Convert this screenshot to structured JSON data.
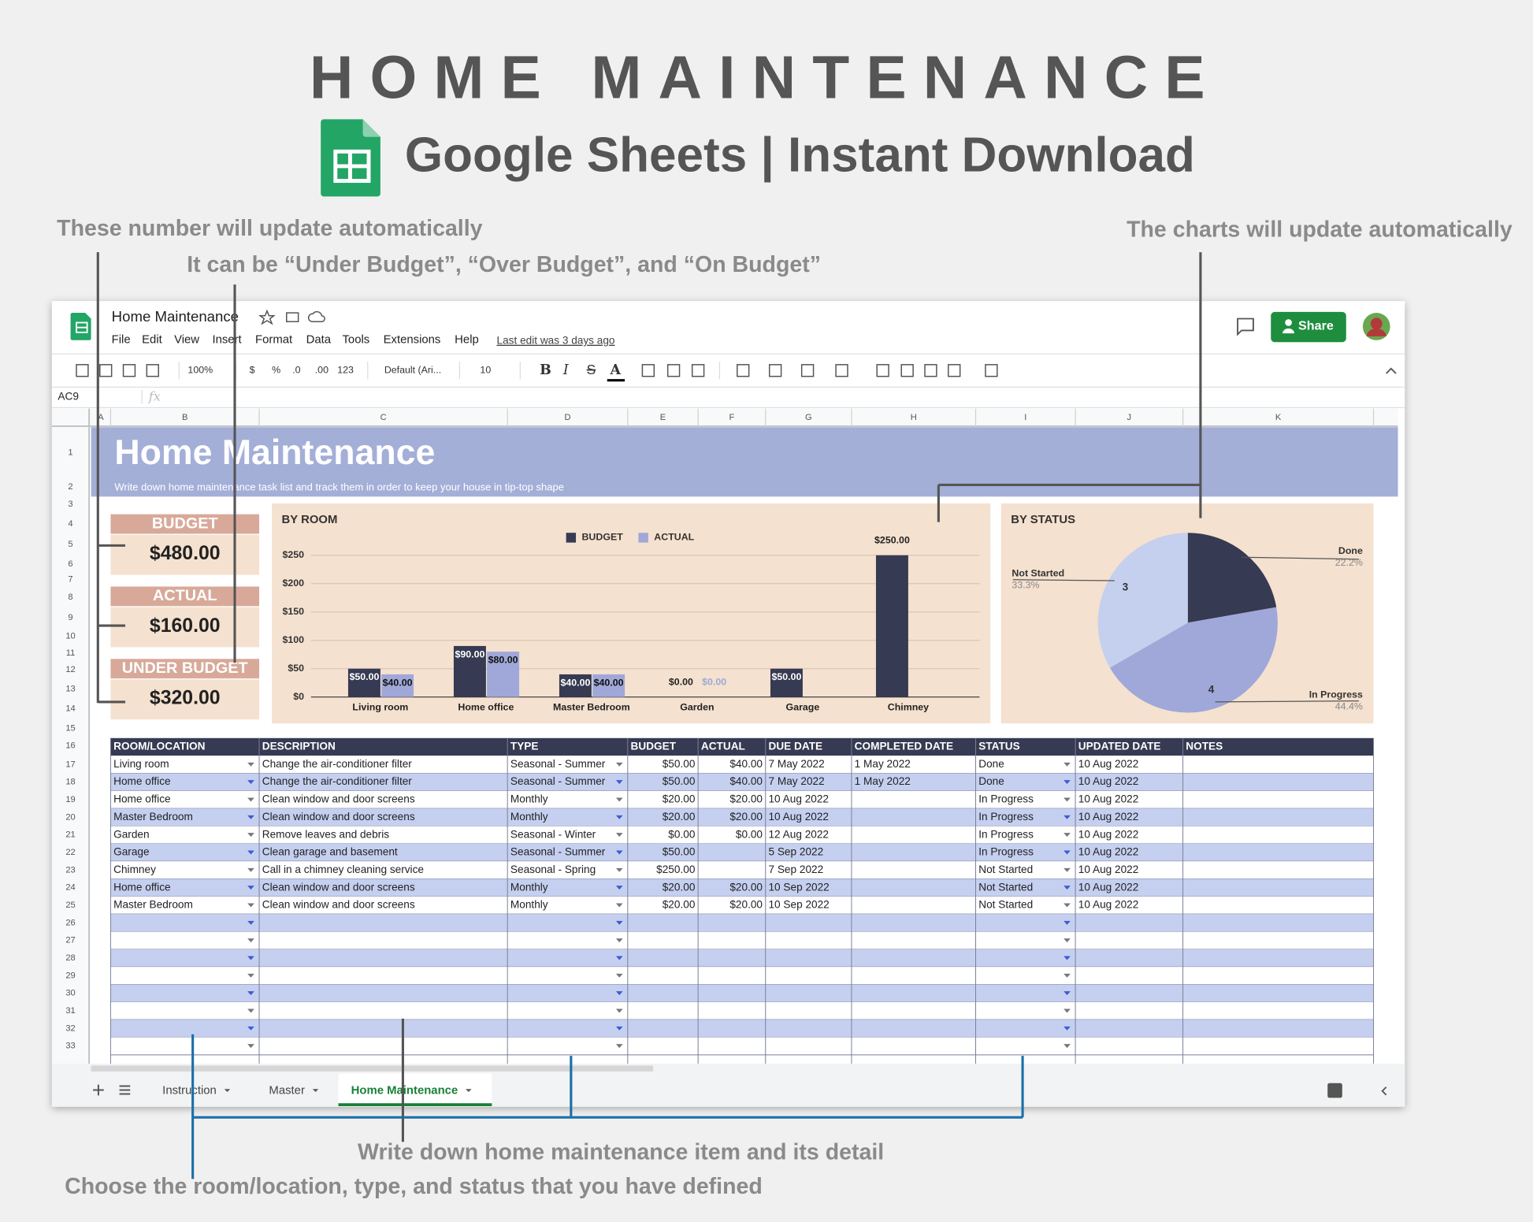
{
  "header": {
    "title": "HOME MAINTENANCE",
    "subtitle": "Google Sheets | Instant Download"
  },
  "annotations": [
    "These number will update automatically",
    "It can be “Under Budget”, “Over Budget”, and “On Budget”",
    "The charts will update automatically",
    "Write down home maintenance item and its detail",
    "Choose the room/location, type, and status that you have defined"
  ],
  "app": {
    "doc_title": "Home Maintenance",
    "menu": [
      "File",
      "Edit",
      "View",
      "Insert",
      "Format",
      "Data",
      "Tools",
      "Extensions",
      "Help"
    ],
    "last_edit": "Last edit was 3 days ago",
    "share": "Share",
    "toolbar": [
      "100%",
      "$",
      "%",
      ".0",
      ".00",
      "123",
      "Default (Ari...",
      "10",
      "B",
      "I",
      "S",
      "A"
    ],
    "cell_ref": "AC9",
    "fx": "fx",
    "columns": [
      "A",
      "B",
      "C",
      "D",
      "E",
      "F",
      "G",
      "H",
      "I",
      "J",
      "K"
    ],
    "rows": [
      1,
      2,
      3,
      4,
      5,
      6,
      7,
      8,
      9,
      10,
      11,
      12,
      13,
      14,
      15,
      16,
      17,
      18,
      19,
      20,
      21,
      22,
      23,
      24,
      25,
      26,
      27,
      28,
      29,
      30,
      31,
      32,
      33
    ],
    "tabs": [
      "Instruction",
      "Master",
      "Home Maintenance"
    ]
  },
  "sheet": {
    "title": "Home Maintenance",
    "subtitle": "Write down home maintenance task list and track them in order to keep your house in tip-top shape",
    "summary": [
      {
        "label": "BUDGET",
        "value": "$480.00"
      },
      {
        "label": "ACTUAL",
        "value": "$160.00"
      },
      {
        "label": "UNDER BUDGET",
        "value": "$320.00"
      }
    ]
  },
  "chart_data": [
    {
      "type": "bar",
      "title": "BY ROOM",
      "categories": [
        "Living room",
        "Home office",
        "Master Bedroom",
        "Garden",
        "Garage",
        "Chimney"
      ],
      "series": [
        {
          "name": "BUDGET",
          "color": "#363a52",
          "values": [
            50,
            90,
            40,
            0,
            50,
            250
          ],
          "value_labels": [
            "$50.00",
            "$90.00",
            "$40.00",
            "$0.00",
            "$50.00",
            "$250.00"
          ]
        },
        {
          "name": "ACTUAL",
          "color": "#9fa8d8",
          "values": [
            40,
            80,
            40,
            0,
            null,
            null
          ],
          "value_labels": [
            "$40.00",
            "$80.00",
            "$40.00",
            "$0.00",
            null,
            null
          ]
        }
      ],
      "ylim": [
        0,
        250
      ],
      "yticks": [
        {
          "value": 0,
          "label": "$0"
        },
        {
          "value": 50,
          "label": "$50"
        },
        {
          "value": 100,
          "label": "$100"
        },
        {
          "value": 150,
          "label": "$150"
        },
        {
          "value": 200,
          "label": "$200"
        },
        {
          "value": 250,
          "label": "$250"
        }
      ],
      "grid": true,
      "legend": "top"
    },
    {
      "type": "pie",
      "title": "BY STATUS",
      "categories": [
        "Done",
        "In Progress",
        "Not Started"
      ],
      "values": [
        22.2,
        44.4,
        33.3
      ],
      "value_labels": [
        "22.2%",
        "44.4%",
        "33.3%"
      ],
      "counts": [
        null,
        4,
        3
      ],
      "colors": [
        "#363a52",
        "#9fa8d8",
        "#c5d0ee"
      ]
    }
  ],
  "table": {
    "headers": [
      "ROOM/LOCATION",
      "DESCRIPTION",
      "TYPE",
      "BUDGET",
      "ACTUAL",
      "DUE DATE",
      "COMPLETED DATE",
      "STATUS",
      "UPDATED DATE",
      "NOTES"
    ],
    "rows": [
      [
        "Living room",
        "Change the air-conditioner filter",
        "Seasonal - Summer",
        "$50.00",
        "$40.00",
        "7 May 2022",
        "1 May 2022",
        "Done",
        "10 Aug 2022",
        null
      ],
      [
        "Home office",
        "Change the air-conditioner filter",
        "Seasonal - Summer",
        "$50.00",
        "$40.00",
        "7 May 2022",
        "1 May 2022",
        "Done",
        "10 Aug 2022",
        null
      ],
      [
        "Home office",
        "Clean window and door screens",
        "Monthly",
        "$20.00",
        "$20.00",
        "10 Aug 2022",
        null,
        "In Progress",
        "10 Aug 2022",
        null
      ],
      [
        "Master Bedroom",
        "Clean window and door screens",
        "Monthly",
        "$20.00",
        "$20.00",
        "10 Aug 2022",
        null,
        "In Progress",
        "10 Aug 2022",
        null
      ],
      [
        "Garden",
        "Remove leaves and debris",
        "Seasonal - Winter",
        "$0.00",
        "$0.00",
        "12 Aug 2022",
        null,
        "In Progress",
        "10 Aug 2022",
        null
      ],
      [
        "Garage",
        "Clean garage and basement",
        "Seasonal - Summer",
        "$50.00",
        null,
        "5 Sep 2022",
        null,
        "In Progress",
        "10 Aug 2022",
        null
      ],
      [
        "Chimney",
        "Call in a chimney cleaning service",
        "Seasonal - Spring",
        "$250.00",
        null,
        "7 Sep 2022",
        null,
        "Not Started",
        "10 Aug 2022",
        null
      ],
      [
        "Home office",
        "Clean window and door screens",
        "Monthly",
        "$20.00",
        "$20.00",
        "10 Sep 2022",
        null,
        "Not Started",
        "10 Aug 2022",
        null
      ],
      [
        "Master Bedroom",
        "Clean window and door screens",
        "Monthly",
        "$20.00",
        "$20.00",
        "10 Sep 2022",
        null,
        "Not Started",
        "10 Aug 2022",
        null
      ]
    ]
  }
}
